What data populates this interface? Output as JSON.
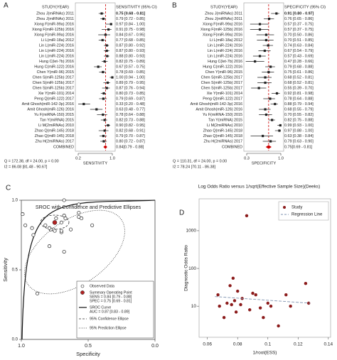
{
  "chart_data": [
    {
      "type": "forest",
      "panel_label": "A",
      "header": [
        "STUDY(YEAR)",
        "SENSITIVITY (95% CI)"
      ],
      "categories": [
        "Zhou J(miRNAs) 2011",
        "Zhou J(miRNAs) 2011",
        "Xiong F(miR-99a) 2016",
        "Xiong F(miR-125b) 2016",
        "Xiong F(miR-99a) 2016",
        "Li L(miR-18a) 2012",
        "Lin L(miR-224) 2016",
        "Lin L(miR-224) 2016",
        "Lin L(miR-224) 2016",
        "Hung C(let-7b) 2016",
        "Hung C(miR-122) 2016",
        "Chen Y(miR-96) 2015",
        "Chen S(miR-125b) 2017",
        "Chen S(miR-125b) 2017",
        "Chen S(miR-125b) 2017",
        "Xie Y(miR-101) 2014",
        "Peng Q(miR-122) 2017",
        "Amit Ghosh(miR-142-3p) 2016",
        "Amit Ghosh(miR-126) 2016",
        "Yu F(miRNA-150) 2015",
        "Tan Y(miRNA) 2015",
        "Li M(2miRNAs) 2010",
        "Zhao Q(miR-145) 2018",
        "Zhao Q(miR-145) 2018",
        "Zhu H(2miRNAs) 2017"
      ],
      "values": [
        0.75,
        0.79,
        0.97,
        0.91,
        0.84,
        0.77,
        0.87,
        0.87,
        0.88,
        0.82,
        0.67,
        0.78,
        1.0,
        0.89,
        0.87,
        0.8,
        0.79,
        0.33,
        0.63,
        0.78,
        0.82,
        0.9,
        0.82,
        0.79,
        0.8
      ],
      "lower": [
        0.68,
        0.72,
        0.84,
        0.75,
        0.67,
        0.68,
        0.8,
        0.8,
        0.8,
        0.75,
        0.57,
        0.69,
        0.94,
        0.79,
        0.76,
        0.73,
        0.69,
        0.2,
        0.48,
        0.64,
        0.73,
        0.82,
        0.68,
        0.7,
        0.72
      ],
      "upper": [
        0.81,
        0.85,
        1.0,
        0.98,
        0.95,
        0.85,
        0.92,
        0.93,
        0.93,
        0.89,
        0.75,
        0.85,
        1.0,
        0.95,
        0.94,
        0.85,
        0.87,
        0.48,
        0.77,
        0.88,
        0.88,
        0.95,
        0.91,
        0.87,
        0.87
      ],
      "value_labels": [
        "0.75 [0.68 - 0.81]",
        "0.79 [0.72 - 0.85]",
        "0.97 [0.84 - 1.00]",
        "0.91 [0.75 - 0.98]",
        "0.84 [0.67 - 0.95]",
        "0.77 [0.68 - 0.85]",
        "0.87 [0.80 - 0.92]",
        "0.87 [0.80 - 0.93]",
        "0.88 [0.80 - 0.93]",
        "0.82 [0.75 - 0.89]",
        "0.67 [0.57 - 0.75]",
        "0.78 [0.69 - 0.85]",
        "1.00 [0.94 - 1.00]",
        "0.89 [0.79 - 0.95]",
        "0.87 [0.76 - 0.94]",
        "0.80 [0.73 - 0.85]",
        "0.79 [0.69 - 0.87]",
        "0.33 [0.20 - 0.48]",
        "0.63 [0.48 - 0.77]",
        "0.78 [0.64 - 0.88]",
        "0.82 [0.73 - 0.88]",
        "0.90 [0.82 - 0.95]",
        "0.82 [0.68 - 0.91]",
        "0.79 [0.70 - 0.87]",
        "0.80 [0.72 - 0.87]"
      ],
      "combined": {
        "label": "COMBINED",
        "value": 0.84,
        "lower": 0.79,
        "upper": 0.88,
        "value_label": "0.84[0.79 - 0.88]"
      },
      "stats": [
        "Q = 172.38, df = 24.00, p = 0.00",
        "I2 = 86.08 [81.48 - 90.67]"
      ],
      "xlim": [
        0.2,
        1.0
      ],
      "xticks": [
        0.2,
        {
          "value": 1,
          "label": "1.0"
        }
      ],
      "xlabel": "SENSITIVITY",
      "color": "#222222",
      "line_color": "#cc0000"
    },
    {
      "type": "forest",
      "panel_label": "B",
      "header": [
        "STUDY(YEAR)",
        "SPECIFICITY (95% CI)"
      ],
      "categories": [
        "Zhou J(miRNAs) 2011",
        "Zhou J(miRNAs) 2011",
        "Xiong F(miR-99a) 2016",
        "Xiong F(miR-125b) 2016",
        "Xiong F(miR-99a) 2016",
        "Li L(miR-18a) 2012",
        "Lin L(miR-224) 2016",
        "Lin L(miR-224) 2016",
        "Lin L(miR-224) 2016",
        "Hung C(let-7b) 2016",
        "Hung C(miR-122) 2016",
        "Chen Y(miR-96) 2015",
        "Chen S(miR-125b) 2017",
        "Chen S(miR-125b) 2017",
        "Chen S(miR-125b) 2017",
        "Xie Y(miR-101) 2014",
        "Peng Q(miR-122) 2017",
        "Amit Ghosh(miR-142-3p) 2016",
        "Amit Ghosh(miR-126) 2016",
        "Yu F(miRNA-150) 2015",
        "Tan Y(miRNA) 2015",
        "Li M(2miRNAs) 2010",
        "Zhao Q(miR-145) 2018",
        "Zhao Q(miR-145) 2018",
        "Zhu H(2miRNAs) 2017"
      ],
      "values": [
        0.91,
        0.76,
        0.57,
        0.57,
        0.7,
        0.7,
        0.74,
        0.67,
        0.57,
        0.47,
        0.79,
        0.75,
        0.68,
        0.68,
        0.55,
        0.92,
        0.78,
        0.88,
        0.68,
        0.7,
        0.82,
        0.99,
        0.97,
        0.63,
        0.79
      ],
      "lower": [
        0.8,
        0.65,
        0.37,
        0.37,
        0.5,
        0.51,
        0.63,
        0.54,
        0.43,
        0.28,
        0.68,
        0.61,
        0.52,
        0.52,
        0.39,
        0.81,
        0.64,
        0.79,
        0.55,
        0.55,
        0.75,
        0.93,
        0.88,
        0.38,
        0.63
      ],
      "upper": [
        0.97,
        0.86,
        0.75,
        0.75,
        0.86,
        0.85,
        0.84,
        0.79,
        0.69,
        0.66,
        0.88,
        0.86,
        0.81,
        0.81,
        0.7,
        0.98,
        0.88,
        0.94,
        0.79,
        0.82,
        0.88,
        1.0,
        1.0,
        0.84,
        0.9
      ],
      "value_labels": [
        "0.91 [0.80 - 0.97]",
        "0.76 [0.65 - 0.86]",
        "0.57 [0.37 - 0.75]",
        "0.57 [0.37 - 0.75]",
        "0.70 [0.50 - 0.86]",
        "0.70 [0.51 - 0.85]",
        "0.74 [0.63 - 0.84]",
        "0.67 [0.54 - 0.79]",
        "0.57 [0.43 - 0.69]",
        "0.47 [0.28 - 0.66]",
        "0.79 [0.68 - 0.88]",
        "0.75 [0.61 - 0.86]",
        "0.68 [0.52 - 0.81]",
        "0.68 [0.52 - 0.81]",
        "0.55 [0.39 - 0.70]",
        "0.92 [0.81 - 0.98]",
        "0.78 [0.64 - 0.88]",
        "0.88 [0.79 - 0.94]",
        "0.68 [0.55 - 0.79]",
        "0.70 [0.55 - 0.82]",
        "0.82 [0.75 - 0.88]",
        "0.99 [0.93 - 1.00]",
        "0.97 [0.88 - 1.00]",
        "0.63 [0.38 - 0.84]",
        "0.79 [0.63 - 0.90]"
      ],
      "combined": {
        "label": "COMBINED",
        "value": 0.75,
        "lower": 0.69,
        "upper": 0.81,
        "value_label": "0.75[0.69 - 0.81]"
      },
      "stats": [
        "Q = 110.31, df = 24.00, p = 0.00",
        "I2 = 78.24 [70.11 - 86.38]"
      ],
      "xlim": [
        0.3,
        1.0
      ],
      "xticks": [
        0.3,
        {
          "value": 1,
          "label": "1.0"
        }
      ],
      "xlabel": "SPECIFICITY",
      "color": "#222222",
      "line_color": "#cc0000"
    },
    {
      "type": "sroc",
      "panel_label": "C",
      "title": "SROC with Confidence and Predictive Ellipses",
      "xlabel": "Specificity",
      "ylabel": "Sensitivity",
      "xlim": [
        1,
        0
      ],
      "xticks": [
        {
          "value": 1,
          "label": "1.0"
        },
        0.5,
        {
          "value": 0,
          "label": "0.0"
        }
      ],
      "ylim": [
        0,
        1
      ],
      "yticks": [
        {
          "value": 0,
          "label": "0.0"
        },
        0.5,
        {
          "value": 1,
          "label": "1.0"
        }
      ],
      "series": [
        {
          "name": "Observed Data",
          "color": "#222222",
          "x": [
            0.91,
            0.76,
            0.57,
            0.57,
            0.7,
            0.7,
            0.74,
            0.67,
            0.57,
            0.47,
            0.79,
            0.75,
            0.68,
            0.68,
            0.55,
            0.92,
            0.78,
            0.88,
            0.68,
            0.7,
            0.82,
            0.99,
            0.97,
            0.63,
            0.79
          ],
          "values": [
            0.75,
            0.79,
            0.97,
            0.91,
            0.84,
            0.77,
            0.87,
            0.87,
            0.88,
            0.82,
            0.67,
            0.78,
            1.0,
            0.89,
            0.87,
            0.8,
            0.79,
            0.33,
            0.63,
            0.78,
            0.82,
            0.9,
            0.82,
            0.79,
            0.8
          ]
        }
      ],
      "summary": {
        "name": "Summary Operating Point",
        "x": 0.75,
        "y": 0.84,
        "color": "#b22222"
      },
      "legend": [
        "SENS = 0.84 [0.79 - 0.88]",
        "SPEC = 0.75 [0.69 - 0.81]",
        "SROC Curve",
        "AUC = 0.87 [0.83 - 0.89]",
        "95% Confidence Ellipse",
        "95% Prediction Ellipse"
      ]
    },
    {
      "type": "scatter",
      "panel_label": "D",
      "title": "Log Odds Ratio versus 1/sqrt(Effective Sample Size)(Deeks)",
      "xlabel": "1/root(ESS)",
      "ylabel": "Diagnostic Odds Ratio",
      "log_y": true,
      "xlim": [
        0.0545,
        0.1415
      ],
      "xticks": [
        0.06,
        0.08,
        0.1,
        0.12,
        0.14
      ],
      "ylim": [
        1.5,
        7000
      ],
      "yticks": [
        10,
        100,
        1000
      ],
      "series": [
        {
          "name": "Study",
          "color": "#8b1a1a",
          "x": [
            0.067,
            0.068,
            0.071,
            0.073,
            0.075,
            0.076,
            0.077,
            0.078,
            0.079,
            0.08,
            0.082,
            0.083,
            0.086,
            0.088,
            0.09,
            0.092,
            0.095,
            0.097,
            0.1,
            0.102,
            0.107,
            0.112,
            0.115,
            0.125,
            0.127
          ],
          "values": [
            20,
            10,
            5,
            12,
            35,
            11,
            55,
            14,
            7,
            25,
            11,
            16,
            2500,
            8,
            22,
            20,
            9,
            5,
            12,
            10,
            3,
            20,
            10,
            40,
            12
          ]
        },
        {
          "name": "Regression Line",
          "color": "#7f93b0",
          "x": [
            0.065,
            0.128
          ],
          "values": [
            18,
            12
          ]
        }
      ],
      "legend_position": "upper right"
    }
  ]
}
